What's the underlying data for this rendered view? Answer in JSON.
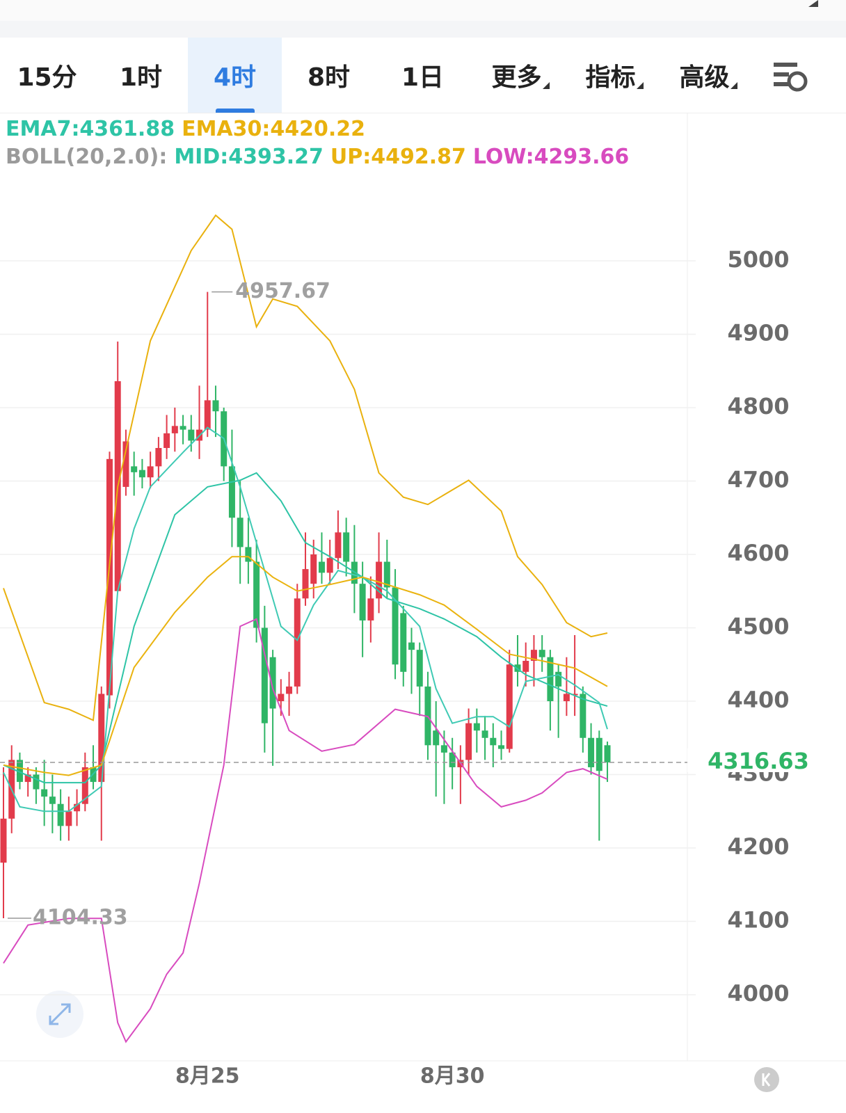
{
  "tabs": [
    "15分",
    "1时",
    "4时",
    "8时",
    "1日",
    "更多",
    "指标",
    "高级"
  ],
  "active_tab": 2,
  "legend": [
    [
      {
        "text": "EMA7:4361.88",
        "color": "#2ec4a6"
      },
      {
        "text": "EMA30:4420.22",
        "color": "#e9b10e"
      }
    ],
    [
      {
        "text": "BOLL(20,2.0):",
        "color": "#9a9a9a"
      },
      {
        "text": "MID:4393.27",
        "color": "#2ec4a6"
      },
      {
        "text": "UP:4492.87",
        "color": "#e9b10e"
      },
      {
        "text": "LOW:4293.66",
        "color": "#d84bbf"
      }
    ]
  ],
  "chart_data": {
    "type": "candlestick",
    "categories": [
      null,
      null,
      null,
      null,
      null,
      null,
      null,
      null,
      null,
      null,
      null,
      null,
      null,
      null,
      null,
      null,
      null,
      null,
      null,
      null,
      null,
      null,
      null,
      null,
      null,
      "8月25",
      null,
      null,
      null,
      null,
      null,
      null,
      null,
      null,
      null,
      null,
      null,
      null,
      null,
      null,
      null,
      null,
      null,
      null,
      null,
      null,
      null,
      null,
      null,
      null,
      null,
      null,
      null,
      null,
      null,
      "8月30",
      null,
      null,
      null,
      null,
      null,
      null,
      null,
      null,
      null,
      null,
      null,
      null,
      null,
      null,
      null,
      null,
      null,
      null,
      null
    ],
    "open": [
      4180,
      4240,
      4320,
      4290,
      4300,
      4280,
      4270,
      4260,
      4230,
      4250,
      4260,
      4310,
      4290,
      4408,
      4550,
      4692,
      4720,
      4715,
      4705,
      4720,
      4745,
      4765,
      4775,
      4770,
      4755,
      4770,
      4810,
      4795,
      4720,
      4650,
      4610,
      4590,
      4500,
      4460,
      4400,
      4410,
      4420,
      4540,
      4560,
      4590,
      4575,
      4595,
      4630,
      4590,
      4560,
      4510,
      4540,
      4590,
      4555,
      4520,
      4480,
      4470,
      4420,
      4360,
      4340,
      4330,
      4310,
      4320,
      4370,
      4360,
      4350,
      4340,
      4335,
      4450,
      4440,
      4455,
      4470,
      4460,
      4440,
      4400,
      4410,
      4410,
      4350,
      4350,
      4340
    ],
    "high": [
      4310,
      4340,
      4330,
      4310,
      4310,
      4320,
      4300,
      4280,
      4270,
      4280,
      4330,
      4340,
      4420,
      4740,
      4890,
      4770,
      4740,
      4730,
      4740,
      4760,
      4790,
      4800,
      4790,
      4790,
      4830,
      4957.67,
      4830,
      4800,
      4770,
      4700,
      4650,
      4620,
      4530,
      4470,
      4430,
      4440,
      4560,
      4630,
      4620,
      4630,
      4620,
      4660,
      4650,
      4640,
      4590,
      4570,
      4630,
      4620,
      4580,
      4530,
      4500,
      4480,
      4440,
      4400,
      4360,
      4350,
      4340,
      4390,
      4390,
      4380,
      4370,
      4360,
      4470,
      4490,
      4480,
      4490,
      4490,
      4470,
      4450,
      4460,
      4490,
      4420,
      4370,
      4360,
      4345
    ],
    "low": [
      4104.33,
      4220,
      4280,
      4270,
      4260,
      4230,
      4220,
      4210,
      4210,
      4230,
      4250,
      4280,
      4210,
      4390,
      4550,
      4680,
      4680,
      4690,
      4690,
      4700,
      4730,
      4740,
      4750,
      4740,
      4730,
      4760,
      4760,
      4700,
      4610,
      4560,
      4560,
      4480,
      4330,
      4312,
      4380,
      4380,
      4410,
      4530,
      4540,
      4560,
      4560,
      4580,
      4570,
      4520,
      4460,
      4480,
      4520,
      4540,
      4430,
      4420,
      4410,
      4380,
      4320,
      4270,
      4260,
      4280,
      4260,
      4300,
      4330,
      4320,
      4310,
      4320,
      4330,
      4420,
      4420,
      4420,
      4440,
      4360,
      4350,
      4380,
      4380,
      4330,
      4300,
      4210,
      4290
    ],
    "close": [
      4240,
      4320,
      4290,
      4300,
      4280,
      4270,
      4260,
      4230,
      4250,
      4260,
      4310,
      4290,
      4410,
      4730,
      4836,
      4754,
      4712,
      4705,
      4720,
      4745,
      4765,
      4775,
      4770,
      4755,
      4770,
      4810,
      4795,
      4720,
      4650,
      4610,
      4590,
      4500,
      4370,
      4390,
      4410,
      4420,
      4540,
      4580,
      4600,
      4575,
      4595,
      4630,
      4590,
      4560,
      4510,
      4540,
      4590,
      4555,
      4450,
      4440,
      4470,
      4420,
      4340,
      4340,
      4330,
      4310,
      4320,
      4370,
      4360,
      4350,
      4340,
      4335,
      4450,
      4440,
      4455,
      4470,
      4460,
      4400,
      4420,
      4410,
      4410,
      4350,
      4310,
      4305,
      4316.63
    ],
    "up_color": "#e23b4b",
    "down_color": "#2fb566",
    "overlays": [
      {
        "color": "#e9b10e",
        "x": [
          0,
          5,
          8,
          11,
          14,
          18,
          23,
          26,
          28,
          31,
          33,
          36,
          40,
          43,
          46,
          49,
          52,
          57,
          61,
          63,
          66,
          69,
          72,
          74
        ],
        "values": [
          4554,
          4398,
          4389,
          4374,
          4692,
          4891,
          5014,
          5062,
          5043,
          4910,
          4948,
          4938,
          4891,
          4825,
          4711,
          4678,
          4668,
          4701,
          4659,
          4597,
          4559,
          4507,
          4488,
          4492.87
        ]
      },
      {
        "color": "#d84bbf",
        "x": [
          0,
          3,
          8,
          12,
          14,
          15,
          18,
          20,
          22,
          24,
          27,
          29,
          31,
          33,
          35,
          39,
          43,
          48,
          52,
          55,
          58,
          61,
          64,
          66,
          69,
          71,
          74
        ],
        "values": [
          4043,
          4095,
          4104,
          4104,
          3962,
          3936,
          3981,
          4028,
          4057,
          4152,
          4313,
          4502,
          4512,
          4417,
          4360,
          4332,
          4341,
          4389,
          4379,
          4332,
          4284,
          4256,
          4265,
          4275,
          4303,
          4308,
          4293.66
        ]
      },
      {
        "color": "#2ec4a6",
        "x": [
          0,
          5,
          10,
          12,
          16,
          21,
          25,
          29,
          31,
          34,
          37,
          40,
          44,
          47,
          51,
          54,
          58,
          61,
          64,
          68,
          71,
          74
        ],
        "values": [
          4313,
          4289,
          4289,
          4313,
          4502,
          4654,
          4692,
          4701,
          4711,
          4673,
          4616,
          4597,
          4569,
          4540,
          4526,
          4512,
          4488,
          4460,
          4436,
          4417,
          4403,
          4393.27
        ]
      },
      {
        "color": "#3fcab4",
        "x": [
          0,
          2,
          5,
          8,
          12,
          14,
          16,
          18,
          22,
          25,
          27,
          29,
          31,
          34,
          36,
          38,
          41,
          44,
          47,
          51,
          53,
          55,
          58,
          60,
          62,
          64,
          68,
          70,
          73,
          74
        ],
        "values": [
          4303,
          4256,
          4250,
          4250,
          4284,
          4550,
          4635,
          4692,
          4739,
          4773,
          4758,
          4692,
          4616,
          4502,
          4483,
          4531,
          4578,
          4569,
          4550,
          4502,
          4417,
          4370,
          4379,
          4379,
          4365,
          4427,
          4436,
          4422,
          4398,
          4361.88
        ]
      },
      {
        "color": "#eab30f",
        "x": [
          0,
          5,
          8,
          12,
          16,
          21,
          25,
          28,
          30,
          33,
          36,
          40,
          44,
          47,
          51,
          54,
          58,
          62,
          66,
          70,
          74
        ],
        "values": [
          4313,
          4303,
          4299,
          4313,
          4446,
          4521,
          4569,
          4597,
          4597,
          4569,
          4550,
          4559,
          4569,
          4559,
          4545,
          4531,
          4498,
          4464,
          4455,
          4445,
          4420.22
        ]
      }
    ],
    "ylim": [
      3910,
      5199
    ],
    "yticks": [
      4000,
      4100,
      4200,
      4300,
      4400,
      4500,
      4600,
      4700,
      4800,
      4900,
      5000
    ],
    "grid": true
  }
}
